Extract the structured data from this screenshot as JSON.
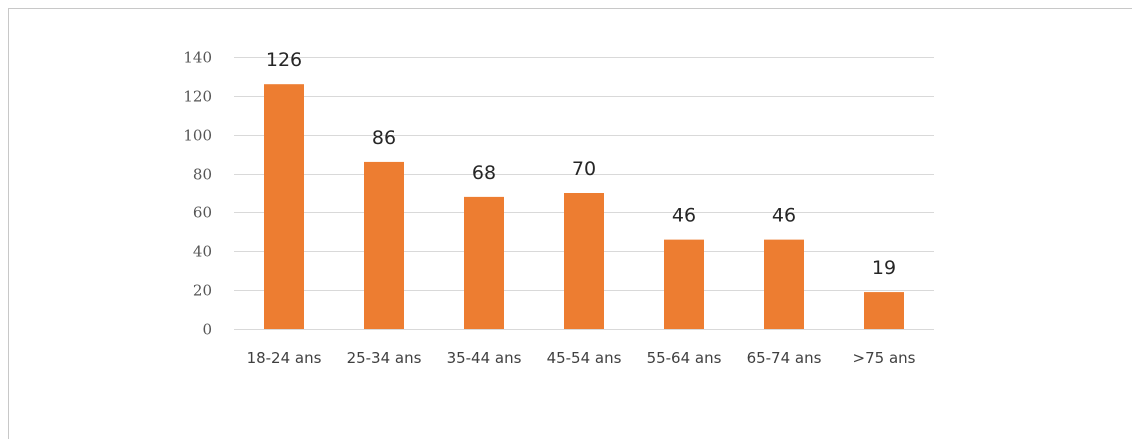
{
  "chart_data": {
    "type": "bar",
    "title": "",
    "xlabel": "",
    "ylabel": "",
    "categories": [
      "18-24 ans",
      "25-34 ans",
      "35-44 ans",
      "45-54 ans",
      "55-64 ans",
      "65-74 ans",
      ">75 ans"
    ],
    "values": [
      126,
      86,
      68,
      70,
      46,
      46,
      19
    ],
    "data_labels": [
      "126",
      "86",
      "68",
      "70",
      "46",
      "46",
      "19"
    ],
    "ylim": [
      0,
      140
    ],
    "y_ticks": [
      0,
      20,
      40,
      60,
      80,
      100,
      120,
      140
    ],
    "grid": true,
    "legend": "none",
    "bar_color": "#ED7D31",
    "grid_color": "#D9D9D9"
  }
}
